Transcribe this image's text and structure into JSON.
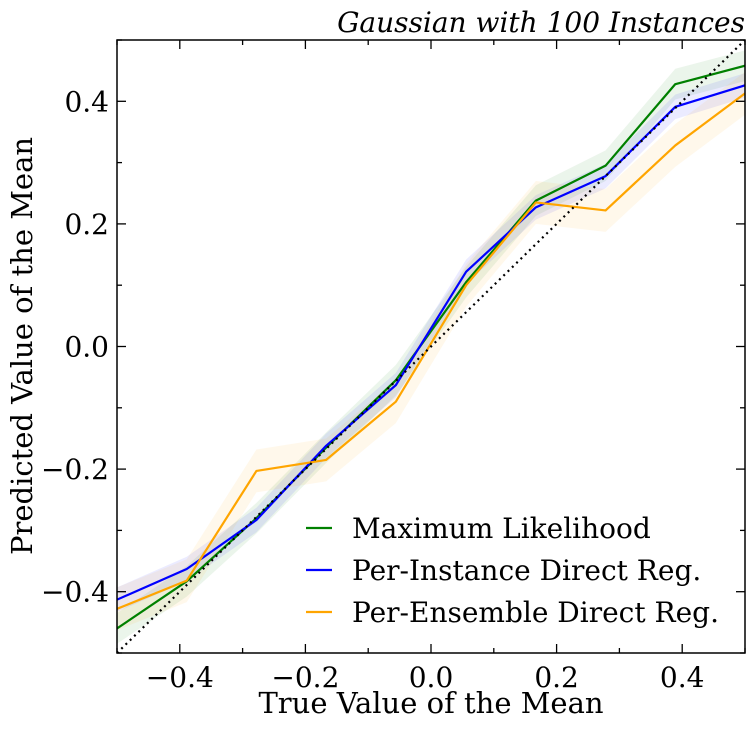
{
  "chart_data": {
    "type": "line",
    "title": "Gaussian with 100 Instances",
    "xlabel": "True Value of the Mean",
    "ylabel": "Predicted Value of the Mean",
    "xlim": [
      -0.5,
      0.5
    ],
    "ylim": [
      -0.5,
      0.5
    ],
    "xticks": [
      -0.4,
      -0.2,
      0.0,
      0.2,
      0.4
    ],
    "xtick_labels": [
      "−0.4",
      "−0.2",
      "0.0",
      "0.2",
      "0.4"
    ],
    "yticks": [
      -0.4,
      -0.2,
      0.0,
      0.2,
      0.4
    ],
    "ytick_labels": [
      "−0.4",
      "−0.2",
      "0.0",
      "0.2",
      "0.4"
    ],
    "grid": false,
    "legend_position": "lower-right",
    "reference_line": {
      "style": "dotted",
      "color": "#000000",
      "x": [
        -0.5,
        0.5
      ],
      "y": [
        -0.5,
        0.5
      ]
    },
    "x": [
      -0.5,
      -0.389,
      -0.278,
      -0.167,
      -0.056,
      0.056,
      0.167,
      0.278,
      0.389,
      0.5
    ],
    "series": [
      {
        "name": "Maximum Likelihood",
        "color": "#008000",
        "values": [
          -0.46,
          -0.383,
          -0.28,
          -0.165,
          -0.055,
          0.105,
          0.238,
          0.295,
          0.428,
          0.458
        ],
        "band": 0.025
      },
      {
        "name": "Per-Instance Direct Reg.",
        "color": "#0000ff",
        "values": [
          -0.413,
          -0.363,
          -0.283,
          -0.162,
          -0.063,
          0.122,
          0.227,
          0.278,
          0.391,
          0.426
        ],
        "band": 0.02
      },
      {
        "name": "Per-Ensemble Direct Reg.",
        "color": "#ffa500",
        "values": [
          -0.428,
          -0.382,
          -0.203,
          -0.185,
          -0.09,
          0.1,
          0.235,
          0.222,
          0.328,
          0.413
        ],
        "band": 0.035
      }
    ]
  }
}
